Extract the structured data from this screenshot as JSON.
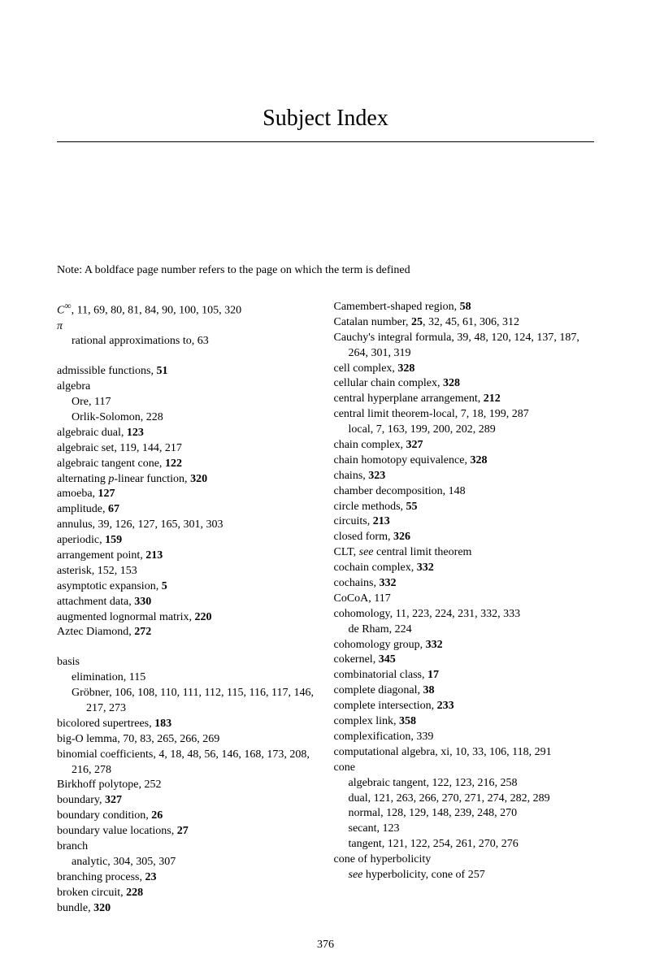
{
  "title": "Subject Index",
  "note": "Note: A boldface page number refers to the page on which the term is defined",
  "pageNumber": "376",
  "left": {
    "e0": {
      "term_html": "<span class='italic'>C</span><sup>∞</sup>, 11, 69, 80, 81, 84, 90, 100, 105, 320"
    },
    "e1": {
      "term_html": "<span class='italic'>π</span>"
    },
    "e2": {
      "term_html": "rational approximations to, 63"
    },
    "e3": {
      "term_html": "admissible functions, <span class='bold'>51</span>"
    },
    "e4": {
      "term_html": "algebra"
    },
    "e5": {
      "term_html": "Ore, 117"
    },
    "e6": {
      "term_html": "Orlik-Solomon, 228"
    },
    "e7": {
      "term_html": "algebraic dual, <span class='bold'>123</span>"
    },
    "e8": {
      "term_html": "algebraic set, 119, 144, 217"
    },
    "e9": {
      "term_html": "algebraic tangent cone, <span class='bold'>122</span>"
    },
    "e10": {
      "term_html": "alternating <span class='italic'>p</span>-linear function, <span class='bold'>320</span>"
    },
    "e11": {
      "term_html": "amoeba, <span class='bold'>127</span>"
    },
    "e12": {
      "term_html": "amplitude, <span class='bold'>67</span>"
    },
    "e13": {
      "term_html": "annulus, 39, 126, 127, 165, 301, 303"
    },
    "e14": {
      "term_html": "aperiodic, <span class='bold'>159</span>"
    },
    "e15": {
      "term_html": "arrangement point, <span class='bold'>213</span>"
    },
    "e16": {
      "term_html": "asterisk, 152, 153"
    },
    "e17": {
      "term_html": "asymptotic expansion, <span class='bold'>5</span>"
    },
    "e18": {
      "term_html": "attachment data, <span class='bold'>330</span>"
    },
    "e19": {
      "term_html": "augmented lognormal matrix, <span class='bold'>220</span>"
    },
    "e20": {
      "term_html": "Aztec Diamond, <span class='bold'>272</span>"
    },
    "e21": {
      "term_html": "basis"
    },
    "e22": {
      "term_html": "elimination, 115"
    },
    "e23": {
      "term_html": "Gröbner, 106, 108, 110, 111, 112, 115, 116, 117, 146, 217, 273"
    },
    "e24": {
      "term_html": "bicolored supertrees, <span class='bold'>183</span>"
    },
    "e25": {
      "term_html": "big-O lemma, 70, 83, 265, 266, 269"
    },
    "e26": {
      "term_html": "binomial coefficients, 4, 18, 48, 56, 146, 168, 173, 208, 216, 278"
    },
    "e27": {
      "term_html": "Birkhoff polytope, 252"
    },
    "e28": {
      "term_html": "boundary, <span class='bold'>327</span>"
    },
    "e29": {
      "term_html": "boundary condition, <span class='bold'>26</span>"
    },
    "e30": {
      "term_html": "boundary value locations, <span class='bold'>27</span>"
    },
    "e31": {
      "term_html": "branch"
    },
    "e32": {
      "term_html": "analytic, 304, 305, 307"
    },
    "e33": {
      "term_html": "branching process, <span class='bold'>23</span>"
    },
    "e34": {
      "term_html": "broken circuit, <span class='bold'>228</span>"
    },
    "e35": {
      "term_html": "bundle, <span class='bold'>320</span>"
    }
  },
  "right": {
    "e0": {
      "term_html": "Camembert-shaped region, <span class='bold'>58</span>"
    },
    "e1": {
      "term_html": "Catalan number, <span class='bold'>25</span>, 32, 45, 61, 306, 312"
    },
    "e2": {
      "term_html": "Cauchy's integral formula, 39, 48, 120, 124, 137, 187, 264, 301, 319"
    },
    "e3": {
      "term_html": "cell complex, <span class='bold'>328</span>"
    },
    "e4": {
      "term_html": "cellular chain complex, <span class='bold'>328</span>"
    },
    "e5": {
      "term_html": "central hyperplane arrangement, <span class='bold'>212</span>"
    },
    "e6": {
      "term_html": "central limit theorem-local, 7, 18, 199, 287"
    },
    "e7": {
      "term_html": "local, 7, 163, 199, 200, 202, 289"
    },
    "e8": {
      "term_html": "chain complex, <span class='bold'>327</span>"
    },
    "e9": {
      "term_html": "chain homotopy equivalence, <span class='bold'>328</span>"
    },
    "e10": {
      "term_html": "chains, <span class='bold'>323</span>"
    },
    "e11": {
      "term_html": "chamber decomposition, 148"
    },
    "e12": {
      "term_html": "circle methods, <span class='bold'>55</span>"
    },
    "e13": {
      "term_html": "circuits, <span class='bold'>213</span>"
    },
    "e14": {
      "term_html": "closed form, <span class='bold'>326</span>"
    },
    "e15": {
      "term_html": "CLT, <span class='italic'>see</span> central limit theorem"
    },
    "e16": {
      "term_html": "cochain complex, <span class='bold'>332</span>"
    },
    "e17": {
      "term_html": "cochains, <span class='bold'>332</span>"
    },
    "e18": {
      "term_html": "CoCoA, 117"
    },
    "e19": {
      "term_html": "cohomology, 11, 223, 224, 231, 332, 333"
    },
    "e20": {
      "term_html": "de Rham, 224"
    },
    "e21": {
      "term_html": "cohomology group, <span class='bold'>332</span>"
    },
    "e22": {
      "term_html": "cokernel, <span class='bold'>345</span>"
    },
    "e23": {
      "term_html": "combinatorial class, <span class='bold'>17</span>"
    },
    "e24": {
      "term_html": "complete diagonal, <span class='bold'>38</span>"
    },
    "e25": {
      "term_html": "complete intersection, <span class='bold'>233</span>"
    },
    "e26": {
      "term_html": "complex link, <span class='bold'>358</span>"
    },
    "e27": {
      "term_html": "complexification, 339"
    },
    "e28": {
      "term_html": "computational algebra, xi, 10, 33, 106, 118, 291"
    },
    "e29": {
      "term_html": "cone"
    },
    "e30": {
      "term_html": "algebraic tangent, 122, 123, 216, 258"
    },
    "e31": {
      "term_html": "dual, 121, 263, 266, 270, 271, 274, 282, 289"
    },
    "e32": {
      "term_html": "normal, 128, 129, 148, 239, 248, 270"
    },
    "e33": {
      "term_html": "secant, 123"
    },
    "e34": {
      "term_html": "tangent, 121, 122, 254, 261, 270, 276"
    },
    "e35": {
      "term_html": "cone of hyperbolicity"
    },
    "e36": {
      "term_html": "<span class='italic'>see</span> hyperbolicity, cone of 257"
    }
  }
}
